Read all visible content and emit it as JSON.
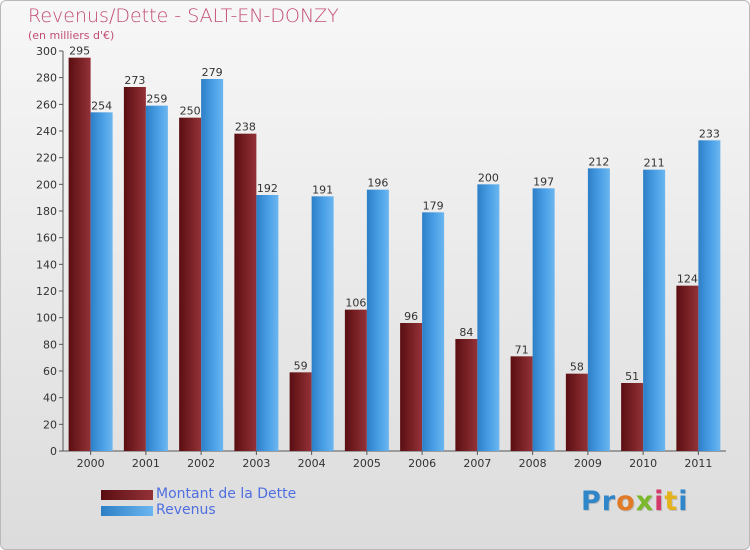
{
  "chart_data": {
    "type": "bar",
    "title": "Revenus/Dette - SALT-EN-DONZY",
    "subtitle": "(en milliers d'€)",
    "categories": [
      "2000",
      "2001",
      "2002",
      "2003",
      "2004",
      "2005",
      "2006",
      "2007",
      "2008",
      "2009",
      "2010",
      "2011"
    ],
    "series": [
      {
        "name": "Montant de la Dette",
        "color": "#7a1f24",
        "values": [
          295,
          273,
          250,
          238,
          59,
          106,
          96,
          84,
          71,
          58,
          51,
          124
        ]
      },
      {
        "name": "Revenus",
        "color": "#4a9fe3",
        "values": [
          254,
          259,
          279,
          192,
          191,
          196,
          179,
          200,
          197,
          212,
          211,
          233
        ]
      }
    ],
    "ylim": [
      0,
      300
    ],
    "yticks": [
      0,
      20,
      40,
      60,
      80,
      100,
      120,
      140,
      160,
      180,
      200,
      220,
      240,
      260,
      280,
      300
    ],
    "grid": false,
    "legend_position": "bottom-left",
    "colors": {
      "title": "#c24c75",
      "legend_text": "#4f6fe0"
    }
  },
  "logo": {
    "text": "Proxiti",
    "letters": [
      {
        "ch": "P",
        "color": "#2f86c9"
      },
      {
        "ch": "r",
        "color": "#2f86c9"
      },
      {
        "ch": "o",
        "color": "#e07a26"
      },
      {
        "ch": "x",
        "color": "#7bb82c"
      },
      {
        "ch": "i",
        "color": "#d43b6b"
      },
      {
        "ch": "t",
        "color": "#e3b21c"
      },
      {
        "ch": "i",
        "color": "#2f86c9"
      }
    ]
  }
}
